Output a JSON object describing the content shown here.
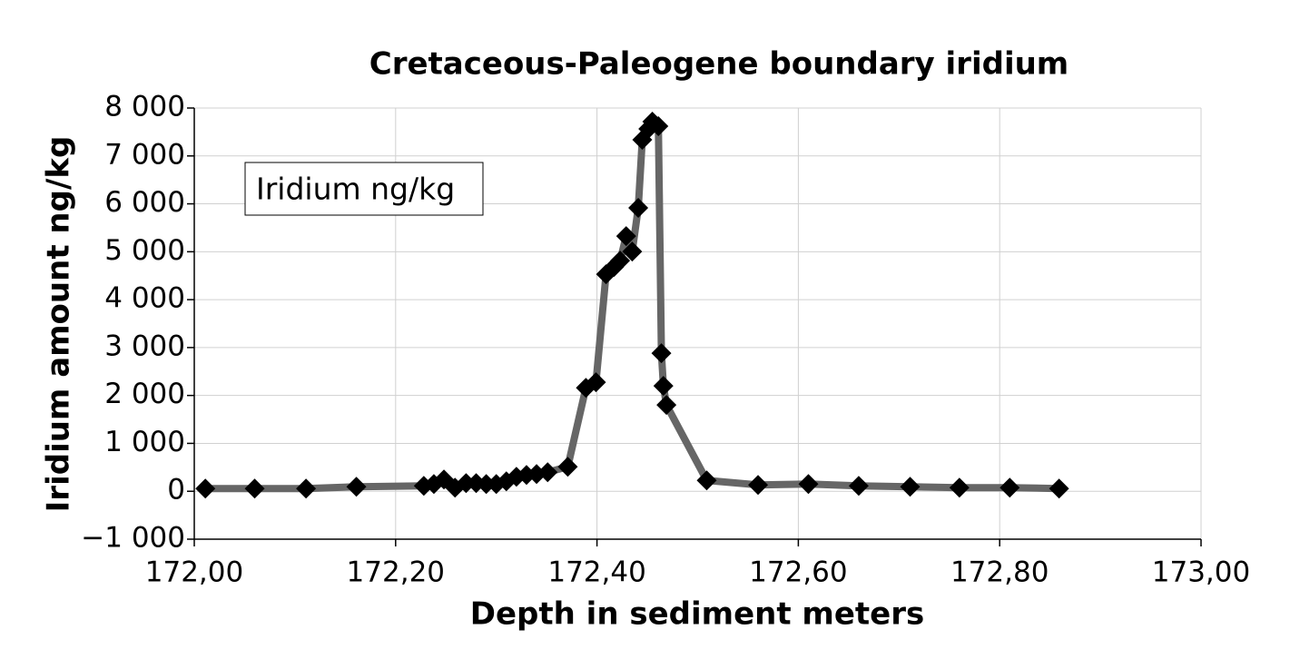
{
  "chart_data": {
    "type": "line",
    "title": "Cretaceous-Paleogene boundary iridium",
    "x_label": "Depth in sediment meters",
    "y_label": "Iridium amount ng/kg",
    "series": [
      {
        "name": "Iridium ng/kg",
        "color": "#666666",
        "marker_color": "#000000",
        "x": [
          172.011,
          172.06,
          172.111,
          172.161,
          172.228,
          172.238,
          172.248,
          172.259,
          172.27,
          172.28,
          172.29,
          172.3,
          172.31,
          172.32,
          172.33,
          172.34,
          172.351,
          172.371,
          172.389,
          172.399,
          172.409,
          172.417,
          172.423,
          172.429,
          172.435,
          172.441,
          172.445,
          172.451,
          172.455,
          172.461,
          172.464,
          172.466,
          172.469,
          172.509,
          172.56,
          172.61,
          172.66,
          172.711,
          172.76,
          172.81,
          172.859
        ],
        "values": [
          57,
          57,
          57,
          95,
          114,
          150,
          246,
          76,
          170,
          170,
          150,
          150,
          208,
          303,
          341,
          360,
          398,
          512,
          2160,
          2275,
          4531,
          4682,
          4815,
          5327,
          5005,
          5915,
          7336,
          7564,
          7716,
          7621,
          2881,
          2199,
          1801,
          227,
          133,
          152,
          114,
          95,
          76,
          76,
          57
        ]
      }
    ],
    "xlim": [
      172.0,
      173.0
    ],
    "xticks": [
      {
        "value": 172.0,
        "label": "172,00"
      },
      {
        "value": 172.2,
        "label": "172,20"
      },
      {
        "value": 172.4,
        "label": "172,40"
      },
      {
        "value": 172.6,
        "label": "172,60"
      },
      {
        "value": 172.8,
        "label": "172,80"
      },
      {
        "value": 173.0,
        "label": "173,00"
      }
    ],
    "ylim": [
      -1000,
      8000
    ],
    "yticks": [
      {
        "value": -1000,
        "label": "−1 000"
      },
      0,
      {
        "value": 1000,
        "label": "1 000"
      },
      {
        "value": 2000,
        "label": "2 000"
      },
      {
        "value": 3000,
        "label": "3 000"
      },
      {
        "value": 4000,
        "label": "4 000"
      },
      {
        "value": 5000,
        "label": "5 000"
      },
      {
        "value": 6000,
        "label": "6 000"
      },
      {
        "value": 7000,
        "label": "7 000"
      },
      {
        "value": 8000,
        "label": "8 000"
      }
    ],
    "grid": true,
    "legend": "upper left"
  }
}
